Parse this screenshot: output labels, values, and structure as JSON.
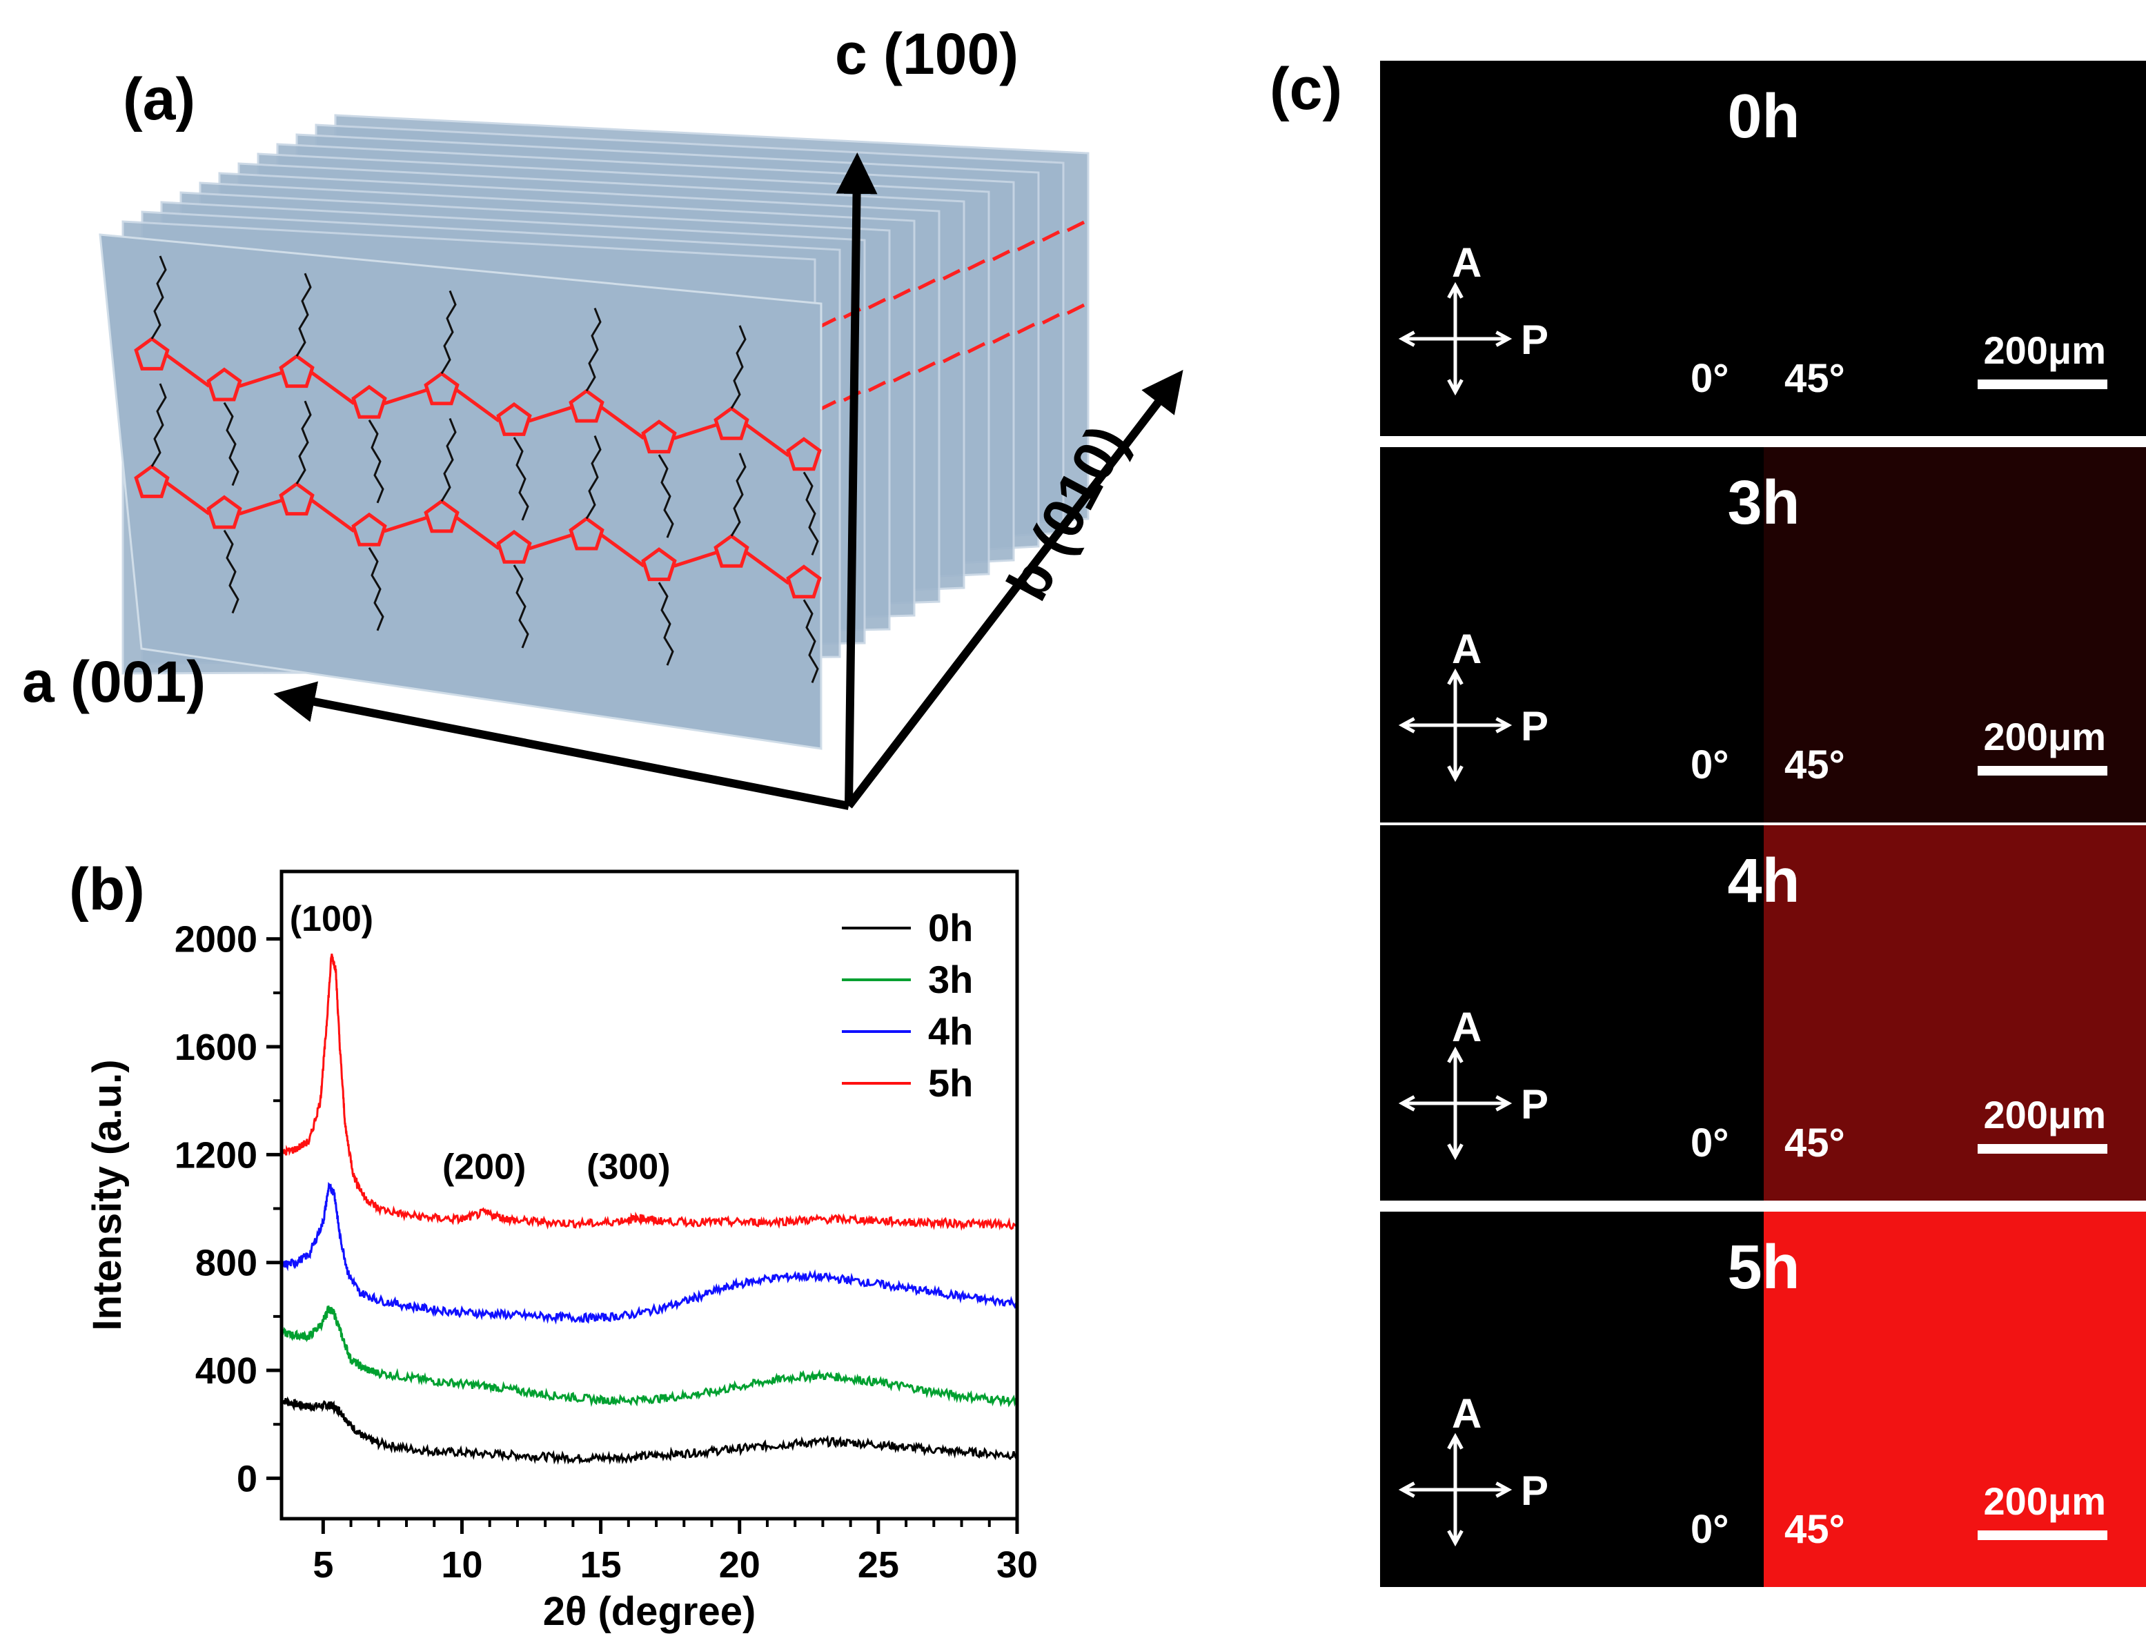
{
  "panels": {
    "a_label": "(a)",
    "b_label": "(b)",
    "c_label": "(c)"
  },
  "schematic": {
    "axis_c": "c (100)",
    "axis_b": "b (010)",
    "axis_a": "a (001)",
    "colors": {
      "sheet": "#9fb6cc",
      "backbone": "#ff2020",
      "side_chain": "#111111",
      "axis": "#000000"
    },
    "icons": [
      "thiophene-ring-icon",
      "alkyl-side-chain-icon"
    ]
  },
  "chart_data": {
    "type": "line",
    "xlabel": "2θ (degree)",
    "ylabel": "Intensity (a.u.)",
    "xlim": [
      3.5,
      30
    ],
    "ylim": [
      -150,
      2250
    ],
    "xticks": [
      5,
      10,
      15,
      20,
      25,
      30
    ],
    "yticks": [
      0,
      400,
      800,
      1200,
      1600,
      2000
    ],
    "grid": false,
    "legend_placement": "top-right",
    "annotations": [
      {
        "text": "(100)",
        "x": 5.3,
        "y": 2030
      },
      {
        "text": "(200)",
        "x": 10.8,
        "y": 1110
      },
      {
        "text": "(300)",
        "x": 16.0,
        "y": 1110
      }
    ],
    "series": [
      {
        "name": "0h",
        "color": "#000000",
        "x": [
          3.5,
          4,
          4.5,
          5,
          5.3,
          5.6,
          6,
          6.5,
          7,
          8,
          9,
          10,
          11,
          12,
          13,
          14,
          15,
          16,
          17,
          18,
          19,
          20,
          21,
          22,
          23,
          24,
          25,
          26,
          27,
          28,
          29,
          30
        ],
        "y": [
          290,
          275,
          265,
          270,
          270,
          250,
          195,
          150,
          130,
          110,
          100,
          95,
          90,
          85,
          80,
          75,
          75,
          78,
          85,
          92,
          100,
          110,
          120,
          128,
          135,
          132,
          125,
          115,
          105,
          98,
          92,
          85
        ]
      },
      {
        "name": "3h",
        "color": "#00a030",
        "x": [
          3.5,
          4,
          4.5,
          5,
          5.2,
          5.4,
          5.7,
          6,
          6.5,
          7,
          8,
          9,
          10,
          11,
          12,
          13,
          14,
          15,
          16,
          17,
          18,
          19,
          20,
          21,
          22,
          23,
          24,
          25,
          26,
          27,
          28,
          29,
          30
        ],
        "y": [
          540,
          530,
          525,
          580,
          630,
          610,
          520,
          440,
          405,
          390,
          375,
          360,
          350,
          340,
          325,
          310,
          300,
          290,
          290,
          295,
          305,
          320,
          340,
          360,
          375,
          380,
          370,
          355,
          340,
          320,
          305,
          295,
          285
        ]
      },
      {
        "name": "4h",
        "color": "#1010ff",
        "x": [
          3.5,
          4,
          4.5,
          5,
          5.2,
          5.4,
          5.6,
          5.9,
          6.3,
          7,
          8,
          9,
          10,
          11,
          12,
          13,
          14,
          15,
          16,
          17,
          18,
          19,
          20,
          21,
          22,
          23,
          24,
          25,
          26,
          27,
          28,
          29,
          30
        ],
        "y": [
          790,
          800,
          830,
          950,
          1080,
          1060,
          900,
          760,
          690,
          660,
          640,
          625,
          615,
          610,
          605,
          600,
          595,
          595,
          605,
          625,
          655,
          690,
          720,
          740,
          750,
          745,
          735,
          720,
          705,
          690,
          675,
          660,
          650
        ]
      },
      {
        "name": "5h",
        "color": "#ff1010",
        "x": [
          3.5,
          4,
          4.5,
          4.9,
          5.1,
          5.3,
          5.45,
          5.6,
          5.8,
          6.1,
          6.5,
          7,
          8,
          9,
          10,
          10.8,
          11.5,
          12,
          13,
          14,
          15,
          16,
          16.5,
          17,
          18,
          19,
          20,
          21,
          22,
          23,
          24,
          25,
          26,
          27,
          28,
          29,
          30
        ],
        "y": [
          1205,
          1220,
          1250,
          1400,
          1650,
          1940,
          1890,
          1600,
          1300,
          1120,
          1040,
          1000,
          975,
          965,
          960,
          985,
          965,
          955,
          950,
          945,
          945,
          960,
          965,
          955,
          950,
          950,
          950,
          950,
          955,
          960,
          960,
          955,
          950,
          948,
          945,
          942,
          940
        ]
      }
    ]
  },
  "pom": {
    "polarizer_A": "A",
    "polarizer_P": "P",
    "angle_0": "0°",
    "angle_45": "45°",
    "scale": "200μm",
    "images": [
      {
        "time": "0h",
        "brightness_45": 0.0
      },
      {
        "time": "3h",
        "brightness_45": 0.12
      },
      {
        "time": "4h",
        "brightness_45": 0.45
      },
      {
        "time": "5h",
        "brightness_45": 0.95
      }
    ]
  }
}
